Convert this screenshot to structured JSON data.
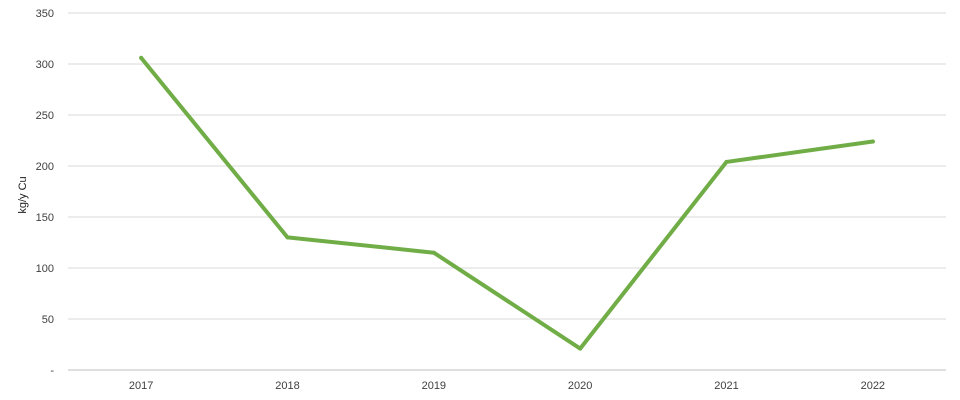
{
  "chart_data": {
    "type": "line",
    "title": "",
    "xlabel": "",
    "ylabel": "kg/y Cu",
    "categories": [
      "2017",
      "2018",
      "2019",
      "2020",
      "2021",
      "2022"
    ],
    "series": [
      {
        "values": [
          306,
          130,
          115,
          21,
          204,
          224
        ],
        "color": "#70ad47"
      }
    ],
    "ylim": [
      0,
      350
    ],
    "yticks": [
      0,
      50,
      100,
      150,
      200,
      250,
      300,
      350
    ],
    "ytick_labels": [
      "-",
      "50",
      "100",
      "150",
      "200",
      "250",
      "300",
      "350"
    ],
    "grid": true,
    "legend": "none"
  }
}
